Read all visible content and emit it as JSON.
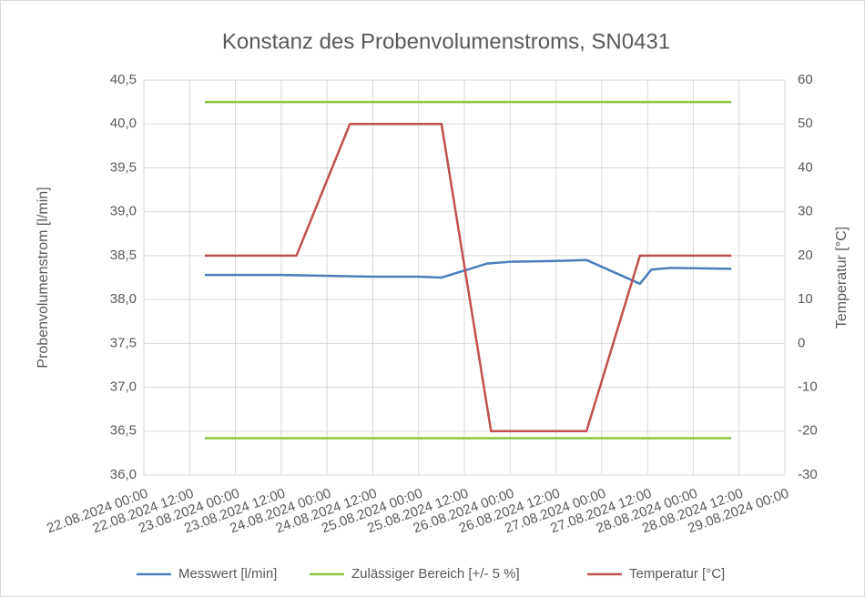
{
  "chart_data": {
    "type": "line",
    "title": "Konstanz des Probenvolumenstroms, SN0431",
    "ylabel": "Probenvolumenstrom [l/min]",
    "y2label": "Temperatur [°C]",
    "xlim": [
      "2024-08-22T00:00",
      "2024-08-29T00:00"
    ],
    "xticks": [
      {
        "value": "2024-08-22T00:00",
        "label": "22.08.2024 00:00"
      },
      {
        "value": "2024-08-22T12:00",
        "label": "22.08.2024 12:00"
      },
      {
        "value": "2024-08-23T00:00",
        "label": "23.08.2024 00:00"
      },
      {
        "value": "2024-08-23T12:00",
        "label": "23.08.2024 12:00"
      },
      {
        "value": "2024-08-24T00:00",
        "label": "24.08.2024 00:00"
      },
      {
        "value": "2024-08-24T12:00",
        "label": "24.08.2024 12:00"
      },
      {
        "value": "2024-08-25T00:00",
        "label": "25.08.2024 00:00"
      },
      {
        "value": "2024-08-25T12:00",
        "label": "25.08.2024 12:00"
      },
      {
        "value": "2024-08-26T00:00",
        "label": "26.08.2024 00:00"
      },
      {
        "value": "2024-08-26T12:00",
        "label": "26.08.2024 12:00"
      },
      {
        "value": "2024-08-27T00:00",
        "label": "27.08.2024 00:00"
      },
      {
        "value": "2024-08-27T12:00",
        "label": "27.08.2024 12:00"
      },
      {
        "value": "2024-08-28T00:00",
        "label": "28.08.2024 00:00"
      },
      {
        "value": "2024-08-28T12:00",
        "label": "28.08.2024 12:00"
      },
      {
        "value": "2024-08-29T00:00",
        "label": "29.08.2024 00:00"
      }
    ],
    "ylim": [
      36.0,
      40.5
    ],
    "yticks": [
      {
        "value": 36.0,
        "label": "36,0"
      },
      {
        "value": 36.5,
        "label": "36,5"
      },
      {
        "value": 37.0,
        "label": "37,0"
      },
      {
        "value": 37.5,
        "label": "37,5"
      },
      {
        "value": 38.0,
        "label": "38,0"
      },
      {
        "value": 38.5,
        "label": "38,5"
      },
      {
        "value": 39.0,
        "label": "39,0"
      },
      {
        "value": 39.5,
        "label": "39,5"
      },
      {
        "value": 40.0,
        "label": "40,0"
      },
      {
        "value": 40.5,
        "label": "40,5"
      }
    ],
    "y2lim": [
      -30,
      60
    ],
    "y2ticks": [
      -30,
      -20,
      -10,
      0,
      10,
      20,
      30,
      40,
      50,
      60
    ],
    "grid": true,
    "legend": "bottom",
    "series": [
      {
        "name": "Messwert [l/min]",
        "color": "#4a7ebb",
        "x": [
          "2024-08-22T16:00",
          "2024-08-23T12:00",
          "2024-08-24T12:00",
          "2024-08-25T00:00",
          "2024-08-25T06:00",
          "2024-08-25T18:00",
          "2024-08-26T00:00",
          "2024-08-26T12:00",
          "2024-08-26T20:00",
          "2024-08-27T10:00",
          "2024-08-27T13:00",
          "2024-08-27T18:00",
          "2024-08-28T10:00"
        ],
        "values": [
          38.28,
          38.28,
          38.26,
          38.26,
          38.25,
          38.41,
          38.43,
          38.44,
          38.45,
          38.18,
          38.34,
          38.36,
          38.35
        ]
      },
      {
        "name": "Zulässiger Bereich [+/- 5 %]",
        "color": "#8cc63f",
        "x": [
          "2024-08-22T16:00",
          "2024-08-28T10:00"
        ],
        "values": [
          40.25,
          40.25
        ],
        "lower": [
          36.42,
          36.42
        ]
      },
      {
        "name": "Temperatur [°C]",
        "color": "#c0504d",
        "axis": "y2",
        "x": [
          "2024-08-22T16:00",
          "2024-08-23T16:00",
          "2024-08-24T06:00",
          "2024-08-25T06:00",
          "2024-08-25T19:00",
          "2024-08-26T20:00",
          "2024-08-27T10:00",
          "2024-08-28T10:00"
        ],
        "values": [
          20,
          20,
          50,
          50,
          -20,
          -20,
          20,
          20
        ]
      }
    ]
  }
}
